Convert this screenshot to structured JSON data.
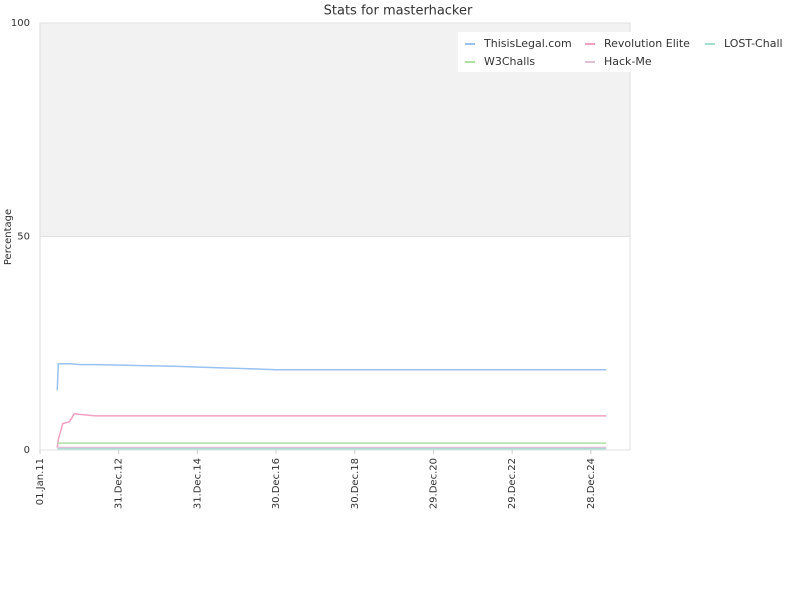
{
  "chart_data": {
    "type": "line",
    "title": "Stats for masterhacker",
    "ylabel": "Percentage",
    "x": [
      "2011-06-10",
      "2011-06-20",
      "2011-08-01",
      "2011-10-01",
      "2011-11-15",
      "2012-01-15",
      "2012-06-01",
      "2013-06-01",
      "2014-06-01",
      "2015-06-01",
      "2016-06-01",
      "2017-01-01",
      "2019-01-01",
      "2021-01-01",
      "2023-01-01",
      "2025-05-20"
    ],
    "series": [
      {
        "name": "ThisisLegal.com",
        "color": "#99c2f0",
        "values": [
          14,
          20.2,
          20.2,
          20.2,
          20.1,
          20.0,
          20.0,
          19.8,
          19.6,
          19.3,
          19.0,
          18.8,
          18.8,
          18.8,
          18.8,
          18.8
        ]
      },
      {
        "name": "Revolution Elite",
        "color": "#f0a0c0",
        "values": [
          0.5,
          2.5,
          6.2,
          6.6,
          8.5,
          8.3,
          8.0,
          8.0,
          8.0,
          8.0,
          8.0,
          8.0,
          8.0,
          8.0,
          8.0,
          8.0
        ]
      },
      {
        "name": "LOST-Chall",
        "color": "#a0e0d0",
        "values": [
          0.3,
          0.3,
          0.3,
          0.3,
          0.3,
          0.3,
          0.3,
          0.3,
          0.3,
          0.3,
          0.3,
          0.3,
          0.3,
          0.3,
          0.3,
          0.3
        ]
      },
      {
        "name": "W3Challs",
        "color": "#b0e0a0",
        "values": [
          1.6,
          1.6,
          1.6,
          1.6,
          1.6,
          1.6,
          1.6,
          1.6,
          1.6,
          1.6,
          1.6,
          1.6,
          1.6,
          1.6,
          1.6,
          1.6
        ]
      },
      {
        "name": "Hack-Me",
        "color": "#e0c0d8",
        "values": [
          0.6,
          0.6,
          0.6,
          0.6,
          0.6,
          0.6,
          0.6,
          0.6,
          0.6,
          0.6,
          0.6,
          0.6,
          0.6,
          0.6,
          0.6,
          0.6
        ]
      }
    ],
    "xlim": [
      "2011-01-01",
      "2025-12-26"
    ],
    "xticks": [
      {
        "value": "2011-01-01",
        "label": "01.Jan.11"
      },
      {
        "value": "2012-12-31",
        "label": "31.Dec.12"
      },
      {
        "value": "2014-12-31",
        "label": "31.Dec.14"
      },
      {
        "value": "2016-12-30",
        "label": "30.Dec.16"
      },
      {
        "value": "2018-12-30",
        "label": "30.Dec.18"
      },
      {
        "value": "2020-12-29",
        "label": "29.Dec.20"
      },
      {
        "value": "2022-12-29",
        "label": "29.Dec.22"
      },
      {
        "value": "2024-12-28",
        "label": "28.Dec.24"
      }
    ],
    "ylim": [
      0,
      100
    ],
    "yticks": [
      0,
      50,
      100
    ],
    "grid": true,
    "legend": "top-right"
  }
}
